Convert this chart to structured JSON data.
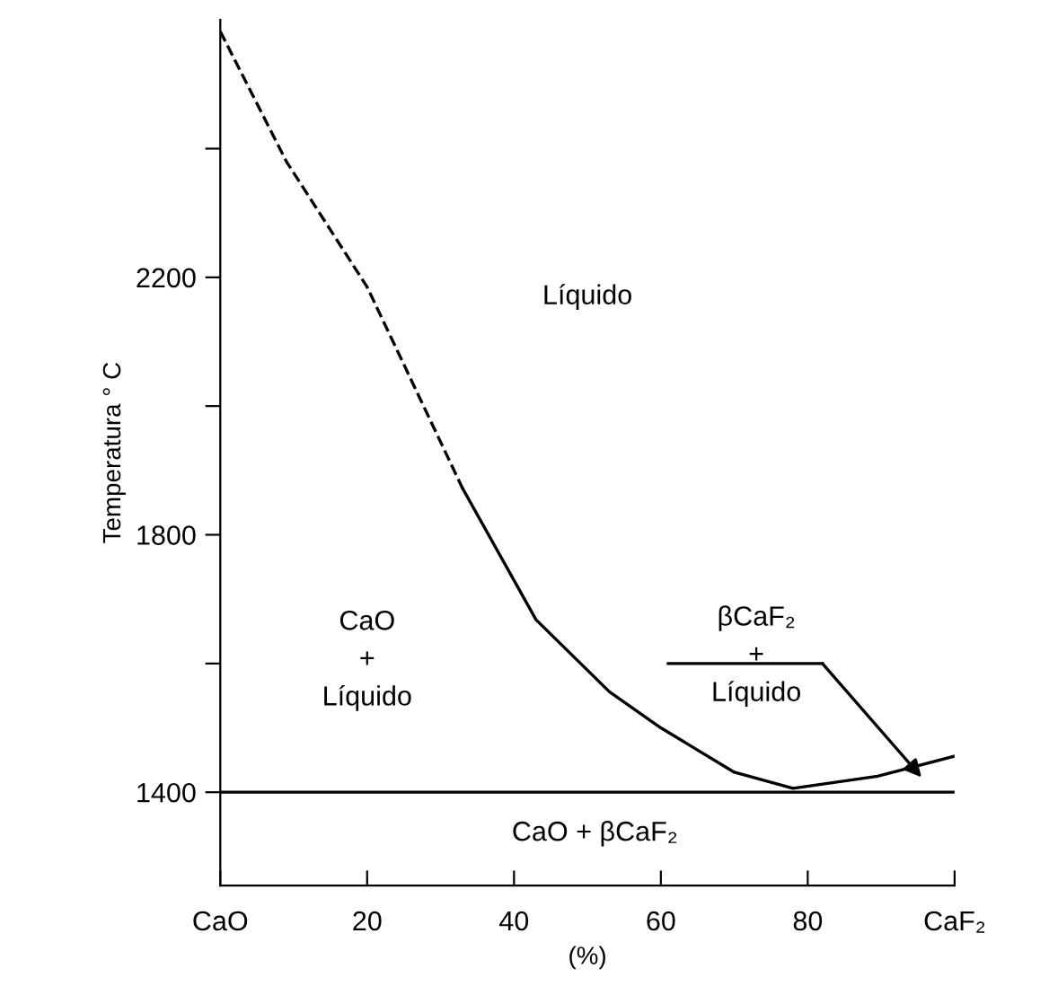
{
  "chart_data": {
    "type": "line",
    "xlabel": "(%)",
    "ylabel": "Temperatura ° C",
    "xlim": [
      0,
      100
    ],
    "ylim": [
      1255,
      2600
    ],
    "xticks": [
      {
        "value": 0,
        "label": "CaO"
      },
      20,
      40,
      60,
      80,
      {
        "value": 100,
        "label": "CaF₂"
      }
    ],
    "yticks": [
      1400,
      {
        "value": 1600,
        "label": null
      },
      1800,
      {
        "value": 2000,
        "label": null
      },
      2200,
      {
        "value": 2400,
        "label": null
      }
    ],
    "series": [
      {
        "color": "#000000",
        "line_style": "dashed",
        "x": [
          0,
          9,
          20,
          33
        ],
        "values": [
          2582,
          2380,
          2185,
          1872
        ]
      },
      {
        "color": "#000000",
        "line_style": "solid",
        "x": [
          33,
          43,
          53,
          60,
          70,
          78,
          89.5,
          100
        ],
        "values": [
          1872,
          1668,
          1556,
          1500,
          1431,
          1406,
          1425,
          1456
        ]
      },
      {
        "color": "#000000",
        "line_style": "solid",
        "x": [
          61,
          82
        ],
        "values": [
          1600,
          1600
        ]
      }
    ],
    "ref_lines": [
      {
        "axis": "y",
        "value": 1400,
        "color": "#000000"
      }
    ],
    "annotations": [
      "Líquido",
      "βCaF₂\n+\nLíquido",
      "CaO\n+\nLíquido",
      "CaO + βCaF₂"
    ],
    "grid": false,
    "legend": false,
    "marker": "none"
  }
}
